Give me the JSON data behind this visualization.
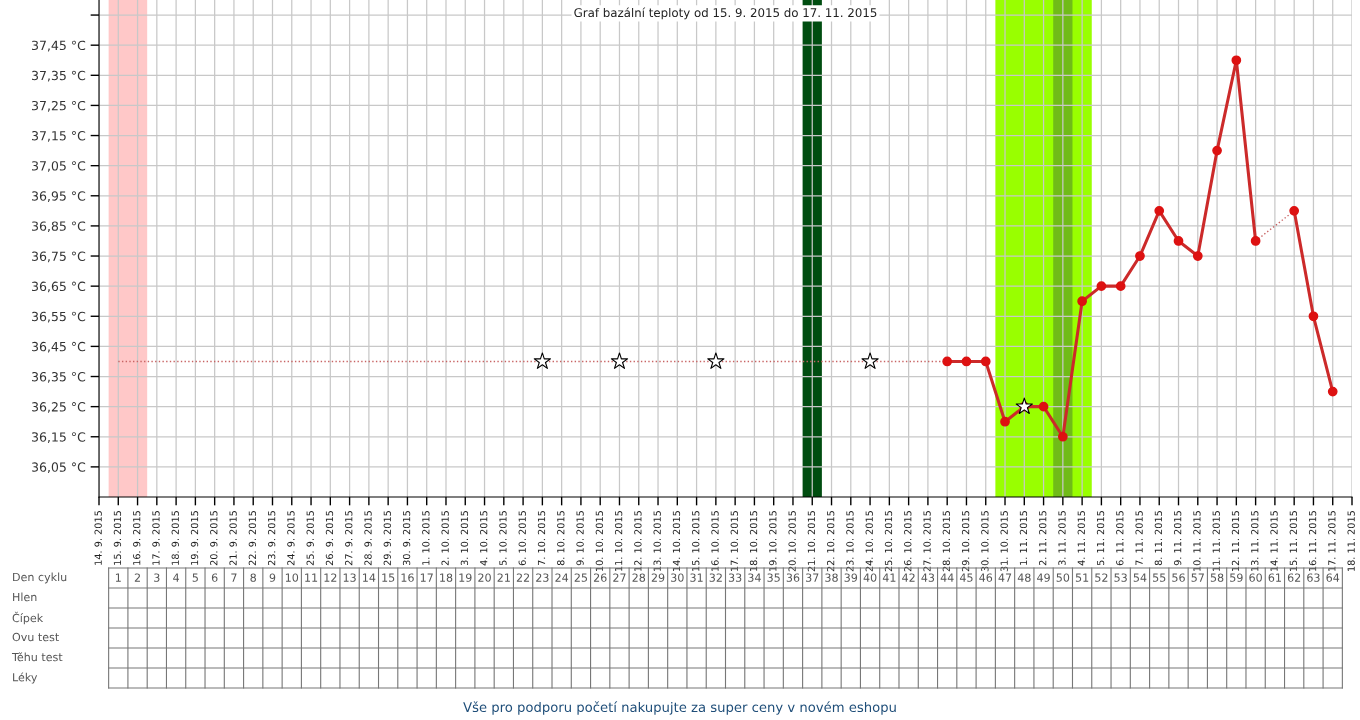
{
  "chart_data": {
    "type": "line",
    "title": "Graf bazální teploty od 15. 9. 2015 do 17. 11. 2015",
    "xlim": [
      "2015-09-14",
      "2015-11-18"
    ],
    "ylim": [
      35.95,
      37.6
    ],
    "grid": true,
    "xticks": [
      {
        "value": "2015-09-14",
        "label": "14. 9. 2015"
      },
      {
        "value": "2015-09-15",
        "label": "15. 9. 2015"
      },
      {
        "value": "2015-09-16",
        "label": "16. 9. 2015"
      },
      {
        "value": "2015-09-17",
        "label": "17. 9. 2015"
      },
      {
        "value": "2015-09-18",
        "label": "18. 9. 2015"
      },
      {
        "value": "2015-09-19",
        "label": "19. 9. 2015"
      },
      {
        "value": "2015-09-20",
        "label": "20. 9. 2015"
      },
      {
        "value": "2015-09-21",
        "label": "21. 9. 2015"
      },
      {
        "value": "2015-09-22",
        "label": "22. 9. 2015"
      },
      {
        "value": "2015-09-23",
        "label": "23. 9. 2015"
      },
      {
        "value": "2015-09-24",
        "label": "24. 9. 2015"
      },
      {
        "value": "2015-09-25",
        "label": "25. 9. 2015"
      },
      {
        "value": "2015-09-26",
        "label": "26. 9. 2015"
      },
      {
        "value": "2015-09-27",
        "label": "27. 9. 2015"
      },
      {
        "value": "2015-09-28",
        "label": "28. 9. 2015"
      },
      {
        "value": "2015-09-29",
        "label": "29. 9. 2015"
      },
      {
        "value": "2015-09-30",
        "label": "30. 9. 2015"
      },
      {
        "value": "2015-10-01",
        "label": "1. 10. 2015"
      },
      {
        "value": "2015-10-02",
        "label": "2. 10. 2015"
      },
      {
        "value": "2015-10-03",
        "label": "3. 10. 2015"
      },
      {
        "value": "2015-10-04",
        "label": "4. 10. 2015"
      },
      {
        "value": "2015-10-05",
        "label": "5. 10. 2015"
      },
      {
        "value": "2015-10-06",
        "label": "6. 10. 2015"
      },
      {
        "value": "2015-10-07",
        "label": "7. 10. 2015"
      },
      {
        "value": "2015-10-08",
        "label": "8. 10. 2015"
      },
      {
        "value": "2015-10-09",
        "label": "9. 10. 2015"
      },
      {
        "value": "2015-10-10",
        "label": "10. 10. 2015"
      },
      {
        "value": "2015-10-11",
        "label": "11. 10. 2015"
      },
      {
        "value": "2015-10-12",
        "label": "12. 10. 2015"
      },
      {
        "value": "2015-10-13",
        "label": "13. 10. 2015"
      },
      {
        "value": "2015-10-14",
        "label": "14. 10. 2015"
      },
      {
        "value": "2015-10-15",
        "label": "15. 10. 2015"
      },
      {
        "value": "2015-10-16",
        "label": "16. 10. 2015"
      },
      {
        "value": "2015-10-17",
        "label": "17. 10. 2015"
      },
      {
        "value": "2015-10-18",
        "label": "18. 10. 2015"
      },
      {
        "value": "2015-10-19",
        "label": "19. 10. 2015"
      },
      {
        "value": "2015-10-20",
        "label": "20. 10. 2015"
      },
      {
        "value": "2015-10-21",
        "label": "21. 10. 2015"
      },
      {
        "value": "2015-10-22",
        "label": "22. 10. 2015"
      },
      {
        "value": "2015-10-23",
        "label": "23. 10. 2015"
      },
      {
        "value": "2015-10-24",
        "label": "24. 10. 2015"
      },
      {
        "value": "2015-10-25",
        "label": "25. 10. 2015"
      },
      {
        "value": "2015-10-26",
        "label": "26. 10. 2015"
      },
      {
        "value": "2015-10-27",
        "label": "27. 10. 2015"
      },
      {
        "value": "2015-10-28",
        "label": "28. 10. 2015"
      },
      {
        "value": "2015-10-29",
        "label": "29. 10. 2015"
      },
      {
        "value": "2015-10-30",
        "label": "30. 10. 2015"
      },
      {
        "value": "2015-10-31",
        "label": "31. 10. 2015"
      },
      {
        "value": "2015-11-01",
        "label": "1. 11. 2015"
      },
      {
        "value": "2015-11-02",
        "label": "2. 11. 2015"
      },
      {
        "value": "2015-11-03",
        "label": "3. 11. 2015"
      },
      {
        "value": "2015-11-04",
        "label": "4. 11. 2015"
      },
      {
        "value": "2015-11-05",
        "label": "5. 11. 2015"
      },
      {
        "value": "2015-11-06",
        "label": "6. 11. 2015"
      },
      {
        "value": "2015-11-07",
        "label": "7. 11. 2015"
      },
      {
        "value": "2015-11-08",
        "label": "8. 11. 2015"
      },
      {
        "value": "2015-11-09",
        "label": "9. 11. 2015"
      },
      {
        "value": "2015-11-10",
        "label": "10. 11. 2015"
      },
      {
        "value": "2015-11-11",
        "label": "11. 11. 2015"
      },
      {
        "value": "2015-11-12",
        "label": "12. 11. 2015"
      },
      {
        "value": "2015-11-13",
        "label": "13. 11. 2015"
      },
      {
        "value": "2015-11-14",
        "label": "14. 11. 2015"
      },
      {
        "value": "2015-11-15",
        "label": "15. 11. 2015"
      },
      {
        "value": "2015-11-16",
        "label": "16. 11. 2015"
      },
      {
        "value": "2015-11-17",
        "label": "17. 11. 2015"
      },
      {
        "value": "2015-11-18",
        "label": "18. 11. 2015"
      }
    ],
    "yticks": [
      {
        "value": 36.05,
        "label": "36,05 °C"
      },
      {
        "value": 36.15,
        "label": "36,15 °C"
      },
      {
        "value": 36.25,
        "label": "36,25 °C"
      },
      {
        "value": 36.35,
        "label": "36,35 °C"
      },
      {
        "value": 36.45,
        "label": "36,45 °C"
      },
      {
        "value": 36.55,
        "label": "36,55 °C"
      },
      {
        "value": 36.65,
        "label": "36,65 °C"
      },
      {
        "value": 36.75,
        "label": "36,75 °C"
      },
      {
        "value": 36.85,
        "label": "36,85 °C"
      },
      {
        "value": 36.95,
        "label": "36,95 °C"
      },
      {
        "value": 37.05,
        "label": "37,05 °C"
      },
      {
        "value": 37.15,
        "label": "37,15 °C"
      },
      {
        "value": 37.25,
        "label": "37,25 °C"
      },
      {
        "value": 37.35,
        "label": "37,35 °C"
      },
      {
        "value": 37.45,
        "label": "37,45 °C"
      },
      {
        "value": 37.55,
        "label": null
      }
    ],
    "x2lim": [
      "2015-09-14",
      "2015-11-18"
    ],
    "x2ticks": [
      {
        "value": "2015-09-15",
        "label": "1"
      },
      {
        "value": "2015-09-16",
        "label": "2"
      },
      {
        "value": "2015-09-17",
        "label": "3"
      },
      {
        "value": "2015-09-18",
        "label": "4"
      },
      {
        "value": "2015-09-19",
        "label": "5"
      },
      {
        "value": "2015-09-20",
        "label": "6"
      },
      {
        "value": "2015-09-21",
        "label": "7"
      },
      {
        "value": "2015-09-22",
        "label": "8"
      },
      {
        "value": "2015-09-23",
        "label": "9"
      },
      {
        "value": "2015-09-24",
        "label": "10"
      },
      {
        "value": "2015-09-25",
        "label": "11"
      },
      {
        "value": "2015-09-26",
        "label": "12"
      },
      {
        "value": "2015-09-27",
        "label": "13"
      },
      {
        "value": "2015-09-28",
        "label": "14"
      },
      {
        "value": "2015-09-29",
        "label": "15"
      },
      {
        "value": "2015-09-30",
        "label": "16"
      },
      {
        "value": "2015-10-01",
        "label": "17"
      },
      {
        "value": "2015-10-02",
        "label": "18"
      },
      {
        "value": "2015-10-03",
        "label": "19"
      },
      {
        "value": "2015-10-04",
        "label": "20"
      },
      {
        "value": "2015-10-05",
        "label": "21"
      },
      {
        "value": "2015-10-06",
        "label": "22"
      },
      {
        "value": "2015-10-07",
        "label": "23"
      },
      {
        "value": "2015-10-08",
        "label": "24"
      },
      {
        "value": "2015-10-09",
        "label": "25"
      },
      {
        "value": "2015-10-10",
        "label": "26"
      },
      {
        "value": "2015-10-11",
        "label": "27"
      },
      {
        "value": "2015-10-12",
        "label": "28"
      },
      {
        "value": "2015-10-13",
        "label": "29"
      },
      {
        "value": "2015-10-14",
        "label": "30"
      },
      {
        "value": "2015-10-15",
        "label": "31"
      },
      {
        "value": "2015-10-16",
        "label": "32"
      },
      {
        "value": "2015-10-17",
        "label": "33"
      },
      {
        "value": "2015-10-18",
        "label": "34"
      },
      {
        "value": "2015-10-19",
        "label": "35"
      },
      {
        "value": "2015-10-20",
        "label": "36"
      },
      {
        "value": "2015-10-21",
        "label": "37"
      },
      {
        "value": "2015-10-22",
        "label": "38"
      },
      {
        "value": "2015-10-23",
        "label": "39"
      },
      {
        "value": "2015-10-24",
        "label": "40"
      },
      {
        "value": "2015-10-25",
        "label": "41"
      },
      {
        "value": "2015-10-26",
        "label": "42"
      },
      {
        "value": "2015-10-27",
        "label": "43"
      },
      {
        "value": "2015-10-28",
        "label": "44"
      },
      {
        "value": "2015-10-29",
        "label": "45"
      },
      {
        "value": "2015-10-30",
        "label": "46"
      },
      {
        "value": "2015-10-31",
        "label": "47"
      },
      {
        "value": "2015-11-01",
        "label": "48"
      },
      {
        "value": "2015-11-02",
        "label": "49"
      },
      {
        "value": "2015-11-03",
        "label": "50"
      },
      {
        "value": "2015-11-04",
        "label": "51"
      },
      {
        "value": "2015-11-05",
        "label": "52"
      },
      {
        "value": "2015-11-06",
        "label": "53"
      },
      {
        "value": "2015-11-07",
        "label": "54"
      },
      {
        "value": "2015-11-08",
        "label": "55"
      },
      {
        "value": "2015-11-09",
        "label": "56"
      },
      {
        "value": "2015-11-10",
        "label": "57"
      },
      {
        "value": "2015-11-11",
        "label": "58"
      },
      {
        "value": "2015-11-12",
        "label": "59"
      },
      {
        "value": "2015-11-13",
        "label": "60"
      },
      {
        "value": "2015-11-14",
        "label": "61"
      },
      {
        "value": "2015-11-15",
        "label": "62"
      },
      {
        "value": "2015-11-16",
        "label": "63"
      },
      {
        "value": "2015-11-17",
        "label": "64"
      }
    ],
    "bands": [
      {
        "axis": "x",
        "from": "2015-09-14T12:00",
        "to": "2015-09-16T12:00",
        "color": "#ffc8c8"
      },
      {
        "axis": "x",
        "from": "2015-10-20T12:00",
        "to": "2015-10-21T12:00",
        "color": "#004d10"
      },
      {
        "axis": "x",
        "from": "2015-10-30T12:00",
        "to": "2015-11-04T12:00",
        "color": "#99ff00"
      },
      {
        "axis": "x",
        "from": "2015-11-02T12:00",
        "to": "2015-11-03T12:00",
        "color": "#70bb18"
      }
    ],
    "annotations": [
      "Den cyklu",
      "Hlen",
      "Čípek",
      "Ovu test",
      "Těhu test",
      "Léky",
      "Vše pro podporu početí nakupujte za super ceny v novém eshopu"
    ],
    "series": [
      {
        "type": "line",
        "line_style": "dotted",
        "color": "#c86464",
        "x": [
          "2015-09-15",
          "2015-10-28",
          "2015-11-01",
          "2015-11-13",
          "2015-11-15"
        ],
        "values": [
          36.4,
          36.4,
          null,
          36.8,
          36.9
        ]
      },
      {
        "type": "line",
        "line_style": "solid",
        "marker": "circle",
        "color": "#cc2a2a",
        "x": [
          "2015-10-28",
          "2015-10-29",
          "2015-10-30",
          "2015-10-31",
          "2015-11-01",
          "2015-11-02",
          "2015-11-03",
          "2015-11-04",
          "2015-11-05",
          "2015-11-06",
          "2015-11-07",
          "2015-11-08",
          "2015-11-09",
          "2015-11-10",
          "2015-11-11",
          "2015-11-12",
          "2015-11-13",
          "2015-11-14",
          "2015-11-15",
          "2015-11-16",
          "2015-11-17"
        ],
        "values": [
          36.4,
          36.4,
          36.4,
          36.2,
          36.25,
          36.25,
          36.15,
          36.6,
          36.65,
          36.65,
          36.75,
          36.9,
          36.8,
          36.75,
          37.1,
          37.4,
          36.8,
          null,
          36.9,
          36.55,
          36.3
        ]
      },
      {
        "type": "scatter",
        "marker": "star",
        "color": "#ffffff",
        "x": [
          "2015-10-07",
          "2015-10-11",
          "2015-10-16",
          "2015-10-24",
          "2015-11-01"
        ],
        "values": [
          36.4,
          36.4,
          36.4,
          36.4,
          36.25
        ]
      }
    ]
  }
}
